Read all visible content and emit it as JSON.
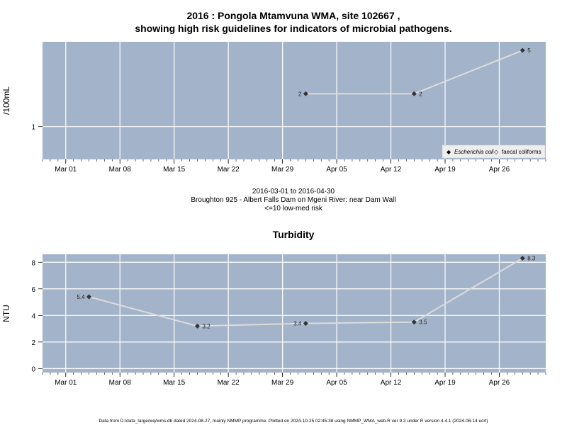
{
  "figure": {
    "title_line1": "2016 : Pongola Mtamvuna WMA, site 102667 ,",
    "title_line2": "showing high risk guidelines for indicators of microbial pathogens.",
    "middle_line1": "2016-03-01 to 2016-04-30",
    "middle_line2": "Broughton 925 - Albert Falls Dam on Mgeni River: near Dam Wall",
    "middle_line3": "<=10 low-med risk",
    "footer": "Data from D:/data_large/wq/wms.db dated 2024-08-27, mainly NMMP programme. Plotted on 2024-10-25 02:45:38 using NMMP_WMA_web.R ver 9.3 under R version 4.4.1 (2024-06-14 ucrt)"
  },
  "colors": {
    "panel_bg": "#a3b3c9",
    "grid": "#ffffff",
    "line": "#dcdcdc",
    "point": "#333333"
  },
  "chart_data": [
    {
      "type": "line",
      "title": "",
      "ylabel": "/100mL",
      "yscale": "log",
      "ylim": [
        0.5,
        6
      ],
      "yticks": [
        1
      ],
      "ytick_labels": [
        "1"
      ],
      "xlim": [
        "2016-02-27",
        "2016-05-02"
      ],
      "xticks": [
        "2016-03-01",
        "2016-03-08",
        "2016-03-15",
        "2016-03-22",
        "2016-03-29",
        "2016-04-05",
        "2016-04-12",
        "2016-04-19",
        "2016-04-26"
      ],
      "xtick_labels": [
        "Mar 01",
        "Mar 08",
        "Mar 15",
        "Mar 22",
        "Mar 29",
        "Apr 05",
        "Apr 12",
        "Apr 19",
        "Apr 26"
      ],
      "grid": true,
      "legend_position": "bottom-right",
      "legend": [
        {
          "marker": "◆",
          "label": "Escherichia coli"
        },
        {
          "marker": "◇",
          "label": "faecal coliforms"
        }
      ],
      "series": [
        {
          "name": "Escherichia coli",
          "points": [
            {
              "x": "2016-04-01",
              "y": 2,
              "label": "2"
            },
            {
              "x": "2016-04-15",
              "y": 2,
              "label": "2"
            },
            {
              "x": "2016-04-29",
              "y": 5,
              "label": "5"
            }
          ]
        }
      ]
    },
    {
      "type": "line",
      "title": "Turbidity",
      "ylabel": "NTU",
      "yscale": "linear",
      "ylim": [
        -0.3,
        8.6
      ],
      "yticks": [
        0,
        2,
        4,
        6,
        8
      ],
      "ytick_labels": [
        "0",
        "2",
        "4",
        "6",
        "8"
      ],
      "xlim": [
        "2016-02-27",
        "2016-05-02"
      ],
      "xticks": [
        "2016-03-01",
        "2016-03-08",
        "2016-03-15",
        "2016-03-22",
        "2016-03-29",
        "2016-04-05",
        "2016-04-12",
        "2016-04-19",
        "2016-04-26"
      ],
      "xtick_labels": [
        "Mar 01",
        "Mar 08",
        "Mar 15",
        "Mar 22",
        "Mar 29",
        "Apr 05",
        "Apr 12",
        "Apr 19",
        "Apr 26"
      ],
      "grid": true,
      "series": [
        {
          "name": "",
          "points": [
            {
              "x": "2016-03-04",
              "y": 5.4,
              "label": "5.4"
            },
            {
              "x": "2016-03-18",
              "y": 3.2,
              "label": "3.2"
            },
            {
              "x": "2016-04-01",
              "y": 3.4,
              "label": "3.4"
            },
            {
              "x": "2016-04-15",
              "y": 3.5,
              "label": "3.5"
            },
            {
              "x": "2016-04-29",
              "y": 8.3,
              "label": "8.3"
            }
          ]
        }
      ]
    }
  ]
}
